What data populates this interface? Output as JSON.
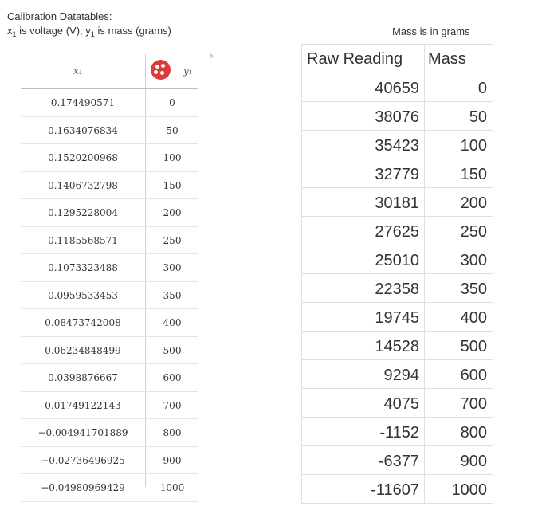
{
  "caption": {
    "line1": "Calibration Datatables:",
    "x_var": "x",
    "x_sub": "1",
    "x_desc": " is voltage (V), y",
    "y_sub": "1",
    "y_desc": " is mass (grams)"
  },
  "left_table": {
    "header_x": "x₁",
    "header_y": "y₁",
    "rows": [
      {
        "x": "0.174490571",
        "y": "0"
      },
      {
        "x": "0.1634076834",
        "y": "50"
      },
      {
        "x": "0.1520200968",
        "y": "100"
      },
      {
        "x": "0.1406732798",
        "y": "150"
      },
      {
        "x": "0.1295228004",
        "y": "200"
      },
      {
        "x": "0.1185568571",
        "y": "250"
      },
      {
        "x": "0.1073323488",
        "y": "300"
      },
      {
        "x": "0.0959533453",
        "y": "350"
      },
      {
        "x": "0.08473742008",
        "y": "400"
      },
      {
        "x": "0.06234848499",
        "y": "500"
      },
      {
        "x": "0.0398876667",
        "y": "600"
      },
      {
        "x": "0.01749122143",
        "y": "700"
      },
      {
        "x": "−0.004941701889",
        "y": "800"
      },
      {
        "x": "−0.02736496925",
        "y": "900"
      },
      {
        "x": "−0.04980969429",
        "y": "1000"
      }
    ]
  },
  "right_caption": "Mass is in grams",
  "right_table": {
    "header_raw": "Raw Reading",
    "header_mass": "Mass",
    "rows": [
      {
        "raw": "40659",
        "mass": "0"
      },
      {
        "raw": "38076",
        "mass": "50"
      },
      {
        "raw": "35423",
        "mass": "100"
      },
      {
        "raw": "32779",
        "mass": "150"
      },
      {
        "raw": "30181",
        "mass": "200"
      },
      {
        "raw": "27625",
        "mass": "250"
      },
      {
        "raw": "25010",
        "mass": "300"
      },
      {
        "raw": "22358",
        "mass": "350"
      },
      {
        "raw": "19745",
        "mass": "400"
      },
      {
        "raw": "14528",
        "mass": "500"
      },
      {
        "raw": "9294",
        "mass": "600"
      },
      {
        "raw": "4075",
        "mass": "700"
      },
      {
        "raw": "-1152",
        "mass": "800"
      },
      {
        "raw": "-6377",
        "mass": "900"
      },
      {
        "raw": "-11607",
        "mass": "1000"
      }
    ]
  },
  "icons": {
    "plot_toggle": "plot-toggle-icon",
    "chevron": "chevron-right-icon"
  },
  "colors": {
    "plot_toggle": "#dd3a3a"
  }
}
